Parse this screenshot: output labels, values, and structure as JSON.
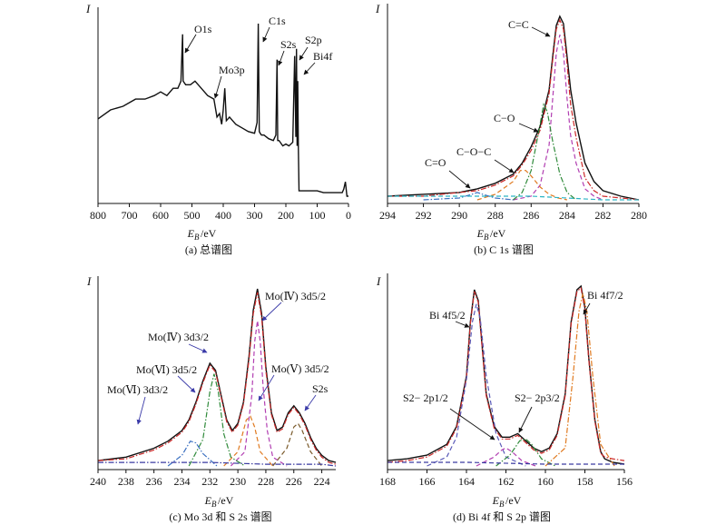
{
  "chart_data": [
    {
      "type": "line",
      "title": "(a) 总谱图",
      "ylabel": "I",
      "xlabel": {
        "main": "E",
        "sub": "B",
        "unit": "/eV"
      },
      "xlim": [
        800,
        0
      ],
      "xticks": [
        "800",
        "700",
        "600",
        "500",
        "400",
        "300",
        "200",
        "100",
        "0"
      ],
      "tick_values": [
        800,
        700,
        600,
        500,
        400,
        300,
        200,
        100,
        0
      ],
      "reversed_x": true,
      "series": [
        {
          "color": "#111111",
          "x": [
            800,
            760,
            720,
            680,
            650,
            620,
            600,
            580,
            560,
            545,
            535,
            530,
            528,
            520,
            505,
            490,
            470,
            450,
            430,
            420,
            412,
            405,
            400,
            395,
            390,
            380,
            370,
            360,
            340,
            320,
            300,
            292,
            288,
            285,
            282,
            278,
            270,
            255,
            240,
            232,
            228,
            226,
            222,
            218,
            210,
            200,
            190,
            178,
            172,
            168,
            166,
            164,
            162,
            160,
            158,
            155,
            150,
            140,
            120,
            100,
            80,
            60,
            40,
            20,
            15,
            10,
            5,
            0
          ],
          "y": [
            0.45,
            0.5,
            0.52,
            0.56,
            0.56,
            0.58,
            0.6,
            0.58,
            0.62,
            0.62,
            0.66,
            0.92,
            0.66,
            0.64,
            0.64,
            0.66,
            0.62,
            0.58,
            0.56,
            0.46,
            0.48,
            0.42,
            0.5,
            0.62,
            0.44,
            0.46,
            0.44,
            0.42,
            0.4,
            0.38,
            0.37,
            0.43,
            0.98,
            0.38,
            0.37,
            0.36,
            0.36,
            0.34,
            0.33,
            0.36,
            0.78,
            0.33,
            0.33,
            0.32,
            0.3,
            0.31,
            0.3,
            0.32,
            0.8,
            0.35,
            0.84,
            0.3,
            0.66,
            0.28,
            0.05,
            0.05,
            0.05,
            0.05,
            0.05,
            0.05,
            0.04,
            0.04,
            0.04,
            0.04,
            0.06,
            0.1,
            0.02,
            0.02
          ]
        }
      ],
      "annotations": [
        "O1s",
        "Mo3p",
        "C1s",
        "S2s",
        "S2p",
        "Bi4f"
      ]
    },
    {
      "type": "line",
      "title": "(b) C 1s 谱图",
      "ylabel": "I",
      "xlabel": {
        "main": "E",
        "sub": "B",
        "unit": "/eV"
      },
      "xlim": [
        294,
        280
      ],
      "xticks": [
        "294",
        "292",
        "290",
        "288",
        "286",
        "284",
        "282",
        "280"
      ],
      "tick_values": [
        294,
        292,
        290,
        288,
        286,
        284,
        282,
        280
      ],
      "reversed_x": true,
      "series": [
        {
          "color": "#111111",
          "x": [
            294,
            292,
            290,
            289,
            288,
            287,
            286.5,
            286,
            285.5,
            285,
            284.8,
            284.6,
            284.4,
            284.2,
            284,
            283.8,
            283.5,
            283,
            282.5,
            282,
            281,
            280
          ],
          "y": [
            0.02,
            0.03,
            0.04,
            0.06,
            0.09,
            0.14,
            0.2,
            0.29,
            0.4,
            0.6,
            0.78,
            0.95,
            1.0,
            0.96,
            0.78,
            0.6,
            0.42,
            0.2,
            0.1,
            0.05,
            0.02,
            0.0
          ]
        },
        {
          "color": "#cc2a2a",
          "x": [
            294,
            292,
            290,
            289,
            288,
            287,
            286.5,
            286,
            285.5,
            285,
            284.8,
            284.6,
            284.4,
            284.2,
            284,
            283.8,
            283.5,
            283,
            282.5,
            282,
            281,
            280
          ],
          "y": [
            0.02,
            0.02,
            0.04,
            0.05,
            0.08,
            0.13,
            0.19,
            0.27,
            0.38,
            0.58,
            0.76,
            0.93,
            0.98,
            0.93,
            0.74,
            0.52,
            0.34,
            0.12,
            0.05,
            0.02,
            0.01,
            0.0
          ]
        },
        {
          "color": "#b23fb2",
          "x": [
            287,
            286,
            285.5,
            285,
            284.8,
            284.6,
            284.4,
            284.2,
            284,
            283.8,
            283.5,
            283,
            282.5,
            282
          ],
          "y": [
            0.0,
            0.02,
            0.08,
            0.3,
            0.55,
            0.8,
            0.9,
            0.8,
            0.55,
            0.35,
            0.2,
            0.06,
            0.02,
            0.0
          ]
        },
        {
          "color": "#2f8a3a",
          "x": [
            287,
            286.5,
            286,
            285.6,
            285.3,
            285.1,
            284.8,
            284.4,
            284,
            283.5
          ],
          "y": [
            0.0,
            0.04,
            0.16,
            0.36,
            0.52,
            0.48,
            0.32,
            0.14,
            0.04,
            0.0
          ]
        },
        {
          "color": "#e07a20",
          "x": [
            289,
            288,
            287,
            286.6,
            286.3,
            286,
            285.5,
            285,
            284.5,
            284
          ],
          "y": [
            0.0,
            0.03,
            0.1,
            0.16,
            0.16,
            0.13,
            0.07,
            0.03,
            0.01,
            0.0
          ]
        },
        {
          "color": "#3a6fc0",
          "x": [
            292,
            290,
            289.3,
            289,
            288.7,
            288,
            287
          ],
          "y": [
            0.0,
            0.01,
            0.03,
            0.04,
            0.03,
            0.01,
            0.0
          ]
        },
        {
          "color": "#2bb4c4",
          "x": [
            294,
            290,
            286,
            284,
            282,
            280
          ],
          "y": [
            0.02,
            0.02,
            0.02,
            0.01,
            0.0,
            0.0
          ]
        }
      ],
      "annotations": [
        "C=C",
        "C−O",
        "C−O−C",
        "C=O"
      ]
    },
    {
      "type": "line",
      "title": "(c) Mo 3d 和  S 2s 谱图",
      "ylabel": "I",
      "xlabel": {
        "main": "E",
        "sub": "B",
        "unit": "/eV"
      },
      "xlim": [
        240,
        223
      ],
      "xticks": [
        "240",
        "238",
        "236",
        "234",
        "232",
        "230",
        "228",
        "226",
        "224"
      ],
      "tick_values": [
        240,
        238,
        236,
        234,
        232,
        230,
        228,
        226,
        224
      ],
      "reversed_x": true,
      "series": [
        {
          "color": "#111111",
          "x": [
            240,
            238,
            236,
            235,
            234,
            233.5,
            233,
            232.5,
            232,
            231.6,
            231.2,
            230.8,
            230.4,
            230,
            229.6,
            229.2,
            228.9,
            228.6,
            228.3,
            228,
            227.6,
            227.2,
            226.8,
            226.4,
            226,
            225.6,
            225.2,
            224.8,
            224.4,
            224,
            223.5,
            223
          ],
          "y": [
            0.03,
            0.05,
            0.1,
            0.14,
            0.2,
            0.26,
            0.36,
            0.48,
            0.58,
            0.54,
            0.4,
            0.26,
            0.2,
            0.24,
            0.36,
            0.62,
            0.88,
            1.0,
            0.86,
            0.56,
            0.3,
            0.2,
            0.22,
            0.3,
            0.34,
            0.3,
            0.24,
            0.16,
            0.1,
            0.06,
            0.03,
            0.02
          ]
        },
        {
          "color": "#cc2a2a",
          "x": [
            240,
            238,
            236,
            235,
            234,
            233.5,
            233,
            232.5,
            232,
            231.6,
            231.2,
            230.8,
            230.4,
            230,
            229.6,
            229.2,
            228.9,
            228.6,
            228.3,
            228,
            227.6,
            227.2,
            226.8,
            226.4,
            226,
            225.6,
            225.2,
            224.8,
            224.4,
            224,
            223.5,
            223
          ],
          "y": [
            0.03,
            0.04,
            0.09,
            0.13,
            0.19,
            0.25,
            0.35,
            0.47,
            0.57,
            0.53,
            0.39,
            0.25,
            0.19,
            0.23,
            0.35,
            0.6,
            0.86,
            0.98,
            0.84,
            0.54,
            0.29,
            0.19,
            0.21,
            0.29,
            0.33,
            0.29,
            0.23,
            0.15,
            0.09,
            0.05,
            0.02,
            0.01
          ]
        },
        {
          "color": "#b23fb2",
          "x": [
            230.5,
            229.5,
            229,
            228.8,
            228.6,
            228.4,
            228.2,
            227.9,
            227.5,
            226.5
          ],
          "y": [
            0.0,
            0.08,
            0.4,
            0.7,
            0.82,
            0.7,
            0.45,
            0.2,
            0.05,
            0.0
          ]
        },
        {
          "color": "#2f8a3a",
          "x": [
            233.5,
            232.5,
            232,
            231.7,
            231.4,
            231,
            230.5,
            229.5
          ],
          "y": [
            0.0,
            0.15,
            0.42,
            0.52,
            0.42,
            0.18,
            0.05,
            0.0
          ]
        },
        {
          "color": "#e07a20",
          "x": [
            231,
            230,
            229.4,
            229.1,
            228.8,
            228.4,
            227.5
          ],
          "y": [
            0.0,
            0.08,
            0.26,
            0.28,
            0.22,
            0.08,
            0.0
          ]
        },
        {
          "color": "#3a6fc0",
          "x": [
            235,
            234,
            233.4,
            233,
            232.5,
            231.5
          ],
          "y": [
            0.0,
            0.06,
            0.14,
            0.13,
            0.07,
            0.0
          ]
        },
        {
          "color": "#7a5a2a",
          "x": [
            227.5,
            226.5,
            226,
            225.7,
            225.4,
            224.8,
            224
          ],
          "y": [
            0.0,
            0.1,
            0.22,
            0.24,
            0.2,
            0.08,
            0.0
          ]
        },
        {
          "color": "#3a3aa0",
          "x": [
            240,
            236,
            232,
            228,
            224,
            223
          ],
          "y": [
            0.02,
            0.02,
            0.02,
            0.01,
            0.01,
            0.0
          ]
        }
      ],
      "annotations": [
        "Mo(Ⅳ) 3d5/2",
        "Mo(Ⅳ) 3d3/2",
        "Mo(Ⅴ) 3d5/2",
        "Mo(Ⅵ) 3d5/2",
        "Mo(Ⅵ) 3d3/2",
        "S2s"
      ]
    },
    {
      "type": "line",
      "title": "(d) Bi 4f 和 S 2p 谱图",
      "ylabel": "I",
      "xlabel": {
        "main": "E",
        "sub": "B",
        "unit": "/eV"
      },
      "xlim": [
        168,
        156
      ],
      "xticks": [
        "168",
        "166",
        "164",
        "162",
        "160",
        "158",
        "156"
      ],
      "tick_values": [
        168,
        166,
        164,
        162,
        160,
        158,
        156
      ],
      "reversed_x": true,
      "series": [
        {
          "color": "#111111",
          "x": [
            168,
            167,
            166,
            165,
            164.5,
            164,
            163.8,
            163.6,
            163.4,
            163.2,
            163,
            162.6,
            162.2,
            161.8,
            161.4,
            161,
            160.6,
            160.2,
            159.8,
            159.4,
            159,
            158.7,
            158.4,
            158.2,
            158,
            157.8,
            157.5,
            157.2,
            157,
            156.6,
            156
          ],
          "y": [
            0.03,
            0.04,
            0.06,
            0.12,
            0.22,
            0.5,
            0.8,
            0.98,
            0.92,
            0.66,
            0.4,
            0.22,
            0.16,
            0.16,
            0.18,
            0.14,
            0.1,
            0.08,
            0.1,
            0.18,
            0.4,
            0.8,
            0.98,
            1.0,
            0.88,
            0.6,
            0.26,
            0.08,
            0.04,
            0.02,
            0.01
          ]
        },
        {
          "color": "#cc2a2a",
          "x": [
            168,
            167,
            166,
            165,
            164.5,
            164,
            163.8,
            163.6,
            163.4,
            163.2,
            163,
            162.6,
            162.2,
            161.8,
            161.4,
            161,
            160.6,
            160.2,
            159.8,
            159.4,
            159,
            158.7,
            158.4,
            158.2,
            158,
            157.8,
            157.5,
            157.2,
            157,
            156.6,
            156
          ],
          "y": [
            0.02,
            0.03,
            0.05,
            0.11,
            0.21,
            0.49,
            0.79,
            0.97,
            0.91,
            0.65,
            0.39,
            0.21,
            0.15,
            0.15,
            0.17,
            0.13,
            0.09,
            0.07,
            0.09,
            0.17,
            0.39,
            0.79,
            0.97,
            0.99,
            0.87,
            0.59,
            0.25,
            0.07,
            0.05,
            0.04,
            0.03
          ]
        },
        {
          "color": "#5a5ab8",
          "x": [
            166,
            165,
            164.5,
            164,
            163.7,
            163.5,
            163.3,
            163,
            162.5,
            162,
            161
          ],
          "y": [
            0.0,
            0.05,
            0.16,
            0.48,
            0.8,
            0.9,
            0.82,
            0.5,
            0.18,
            0.05,
            0.0
          ]
        },
        {
          "color": "#2f8a3a",
          "x": [
            162.5,
            161.8,
            161.3,
            161,
            160.7,
            160.2,
            159.5
          ],
          "y": [
            0.0,
            0.06,
            0.14,
            0.15,
            0.12,
            0.04,
            0.0
          ]
        },
        {
          "color": "#b23fb2",
          "x": [
            163.5,
            162.6,
            162.2,
            162,
            161.7,
            161.2,
            160.5
          ],
          "y": [
            0.0,
            0.05,
            0.09,
            0.1,
            0.08,
            0.03,
            0.0
          ]
        },
        {
          "color": "#e07a20",
          "x": [
            160,
            159,
            158.6,
            158.3,
            158.1,
            157.9,
            157.6,
            157.2,
            156.5
          ],
          "y": [
            0.0,
            0.1,
            0.5,
            0.86,
            0.96,
            0.86,
            0.5,
            0.12,
            0.0
          ]
        },
        {
          "color": "#3a3aa0",
          "x": [
            168,
            164,
            160,
            158,
            156
          ],
          "y": [
            0.02,
            0.02,
            0.01,
            0.01,
            0.01
          ]
        }
      ],
      "annotations": [
        "Bi 4f7/2",
        "Bi 4f5/2",
        "S2− 2p1/2",
        "S2− 2p3/2"
      ]
    }
  ]
}
